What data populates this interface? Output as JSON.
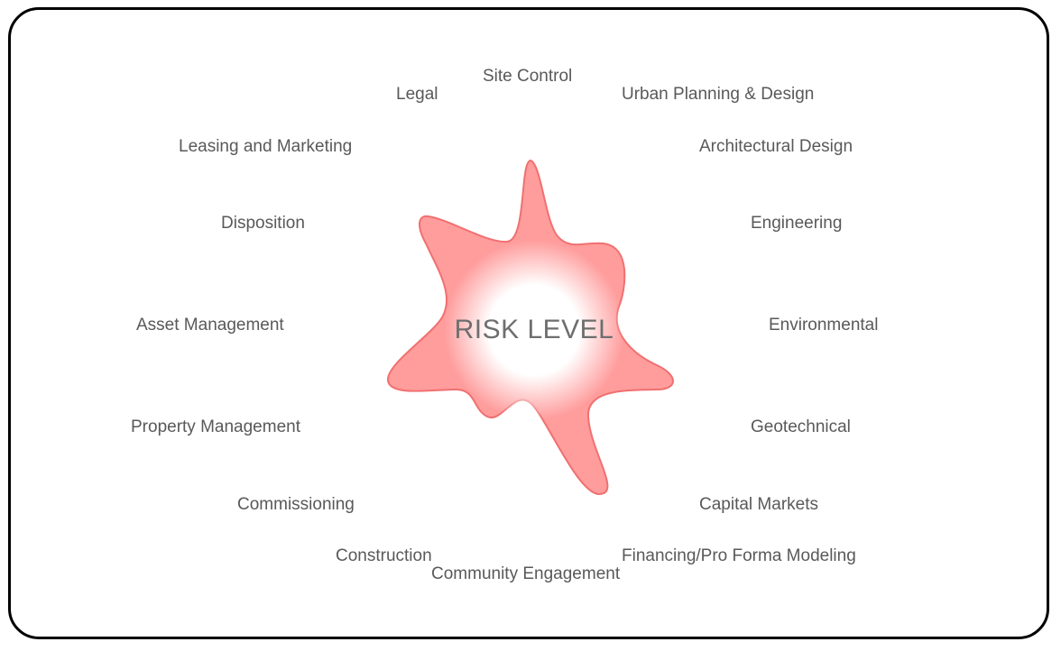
{
  "diagram": {
    "center_label": "RISK LEVEL",
    "categories": [
      "Site Control",
      "Urban Planning & Design",
      "Architectural Design",
      "Engineering",
      "Environmental",
      "Geotechnical",
      "Capital Markets",
      "Financing/Pro Forma Modeling",
      "Community Engagement",
      "Construction",
      "Commissioning",
      "Property Management",
      "Asset Management",
      "Disposition",
      "Leasing and Marketing",
      "Legal"
    ],
    "colors": {
      "blob_fill": "#ff9c9c",
      "blob_stroke": "#f07070",
      "glow": "#ffffff",
      "label_text": "#595959"
    }
  }
}
